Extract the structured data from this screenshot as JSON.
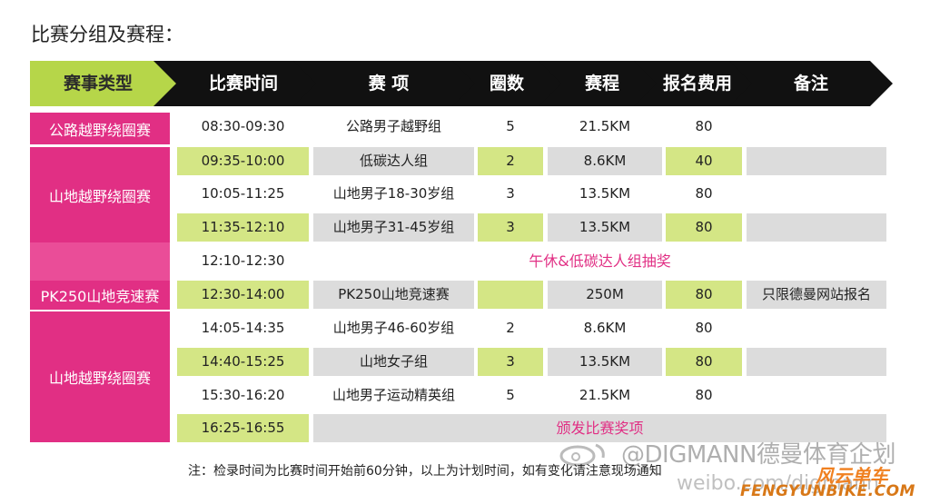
{
  "title": "比赛分组及赛程：",
  "colors": {
    "magenta": "#e12f84",
    "lime": "#d4e685",
    "gray": "#dcdcdc",
    "header": "#111111"
  },
  "header": {
    "type": "赛事类型",
    "time": "比赛时间",
    "event": "赛  项",
    "laps": "圈数",
    "distance": "赛程",
    "fee": "报名费用",
    "note": "备注"
  },
  "categories": {
    "road": "公路越野绕圈赛",
    "mtb1": "山地越野绕圈赛",
    "pk250": "PK250山地竞速赛",
    "mtb2": "山地越野绕圈赛"
  },
  "rows": [
    {
      "time": "08:30-09:30",
      "event": "公路男子越野组",
      "laps": "5",
      "distance": "21.5KM",
      "fee": "80",
      "note": ""
    },
    {
      "time": "09:35-10:00",
      "event": "低碳达人组",
      "laps": "2",
      "distance": "8.6KM",
      "fee": "40",
      "note": ""
    },
    {
      "time": "10:05-11:25",
      "event": "山地男子18-30岁组",
      "laps": "3",
      "distance": "13.5KM",
      "fee": "80",
      "note": ""
    },
    {
      "time": "11:35-12:10",
      "event": "山地男子31-45岁组",
      "laps": "3",
      "distance": "13.5KM",
      "fee": "80",
      "note": ""
    },
    {
      "time": "12:10-12:30",
      "merged": "午休&低碳达人组抽奖"
    },
    {
      "time": "12:30-14:00",
      "event": "PK250山地竞速赛",
      "laps": "",
      "distance": "250M",
      "fee": "80",
      "note": "只限德曼网站报名"
    },
    {
      "time": "14:05-14:35",
      "event": "山地男子46-60岁组",
      "laps": "2",
      "distance": "8.6KM",
      "fee": "80",
      "note": ""
    },
    {
      "time": "14:40-15:25",
      "event": "山地女子组",
      "laps": "3",
      "distance": "13.5KM",
      "fee": "80",
      "note": ""
    },
    {
      "time": "15:30-16:20",
      "event": "山地男子运动精英组",
      "laps": "5",
      "distance": "21.5KM",
      "fee": "80",
      "note": ""
    },
    {
      "time": "16:25-16:55",
      "merged": "颁发比赛奖项"
    }
  ],
  "footnote": "注：检录时间为比赛时间开始前60分钟，以上为计划时间，如有变化请注意现场通知",
  "watermark": "@DIGMANN德曼体育企划",
  "weibo": "weibo.com/digmann",
  "brand_cn": "风云单车",
  "brand_url": "FENGYUNBIKE.COM"
}
